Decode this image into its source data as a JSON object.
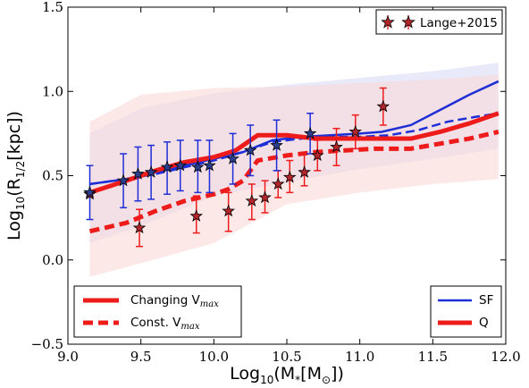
{
  "chart_data": {
    "type": "line",
    "xlabel": "Log10(M*[M⊙])",
    "ylabel": "Log10(R1/2[kpc])",
    "xlabel_parts": {
      "pre": "Log",
      "sub1": "10",
      "mid": "(M",
      "sub2": "*",
      "mid2": "[M",
      "sub3": "⊙",
      "post": "])"
    },
    "ylabel_parts": {
      "pre": "Log",
      "sub1": "10",
      "mid": "(R",
      "sub2": "1/2",
      "post": "[kpc])"
    },
    "xlim": [
      9.0,
      12.0
    ],
    "ylim": [
      -0.5,
      1.5
    ],
    "xticks": [
      9.0,
      9.5,
      10.0,
      10.5,
      11.0,
      11.5,
      12.0
    ],
    "yticks": [
      -0.5,
      0.0,
      0.5,
      1.0,
      1.5
    ],
    "xtick_labels": [
      "9.0",
      "9.5",
      "10.0",
      "10.5",
      "11.0",
      "11.5",
      "12.0"
    ],
    "ytick_labels": [
      "−0.5",
      "0.0",
      "0.5",
      "1.0",
      "1.5"
    ],
    "grid": false,
    "colors": {
      "sf": "#1f2fd6",
      "q": "#ee1b1b",
      "star_q_fill": "#b3262b",
      "star_sf_fill": "#2c3f8f",
      "band_sf": "#d5d8f6",
      "band_q": "#fbd6d6"
    },
    "bands": [
      {
        "name": "SF",
        "x": [
          9.15,
          9.5,
          10.0,
          10.5,
          11.0,
          11.5,
          11.95
        ],
        "upper": [
          0.75,
          0.9,
          0.99,
          1.04,
          1.08,
          1.12,
          1.17
        ],
        "lower": [
          0.1,
          0.2,
          0.38,
          0.46,
          0.54,
          0.6,
          0.66
        ]
      },
      {
        "name": "Q",
        "x": [
          9.15,
          9.5,
          10.0,
          10.5,
          11.0,
          11.5,
          11.95
        ],
        "upper": [
          0.82,
          0.98,
          1.02,
          1.03,
          1.05,
          1.07,
          1.1
        ],
        "lower": [
          -0.1,
          -0.02,
          0.1,
          0.33,
          0.4,
          0.45,
          0.48
        ]
      }
    ],
    "series": [
      {
        "name": "SF",
        "group": "SF",
        "style": "solid",
        "x": [
          9.15,
          9.4,
          9.6,
          9.8,
          10.0,
          10.2,
          10.4,
          10.6,
          10.8,
          11.0,
          11.15,
          11.35,
          11.55,
          11.75,
          11.95
        ],
        "values": [
          0.45,
          0.48,
          0.52,
          0.56,
          0.6,
          0.64,
          0.71,
          0.73,
          0.74,
          0.75,
          0.76,
          0.8,
          0.89,
          0.98,
          1.06
        ]
      },
      {
        "name": "SF",
        "group": "SF",
        "style": "dashed",
        "x": [
          9.15,
          9.4,
          9.6,
          9.8,
          10.0,
          10.2,
          10.4,
          10.6,
          10.8,
          11.0,
          11.2,
          11.4,
          11.6,
          11.8,
          11.95
        ],
        "values": [
          0.45,
          0.48,
          0.51,
          0.55,
          0.59,
          0.64,
          0.7,
          0.72,
          0.73,
          0.73,
          0.74,
          0.77,
          0.82,
          0.85,
          0.87
        ]
      },
      {
        "name": "Q",
        "group": "Q",
        "style": "solid",
        "x": [
          9.15,
          9.4,
          9.6,
          9.8,
          10.0,
          10.15,
          10.3,
          10.5,
          10.7,
          10.9,
          11.1,
          11.35,
          11.55,
          11.75,
          11.95
        ],
        "values": [
          0.4,
          0.47,
          0.53,
          0.58,
          0.61,
          0.65,
          0.74,
          0.74,
          0.72,
          0.72,
          0.72,
          0.72,
          0.76,
          0.81,
          0.87
        ]
      },
      {
        "name": "Q",
        "group": "Q",
        "style": "dashed",
        "x": [
          9.15,
          9.4,
          9.6,
          9.8,
          10.0,
          10.1,
          10.2,
          10.3,
          10.5,
          10.7,
          10.9,
          11.1,
          11.35,
          11.55,
          11.75,
          11.95
        ],
        "values": [
          0.17,
          0.22,
          0.29,
          0.35,
          0.39,
          0.42,
          0.47,
          0.59,
          0.62,
          0.64,
          0.65,
          0.66,
          0.66,
          0.69,
          0.72,
          0.76
        ]
      }
    ],
    "stars_sf": [
      {
        "x": 9.15,
        "y": 0.4,
        "lo": 0.24,
        "hi": 0.56
      },
      {
        "x": 9.38,
        "y": 0.47,
        "lo": 0.31,
        "hi": 0.63
      },
      {
        "x": 9.48,
        "y": 0.51,
        "lo": 0.35,
        "hi": 0.67
      },
      {
        "x": 9.57,
        "y": 0.52,
        "lo": 0.36,
        "hi": 0.68
      },
      {
        "x": 9.68,
        "y": 0.55,
        "lo": 0.39,
        "hi": 0.7
      },
      {
        "x": 9.77,
        "y": 0.56,
        "lo": 0.41,
        "hi": 0.71
      },
      {
        "x": 9.89,
        "y": 0.55,
        "lo": 0.4,
        "hi": 0.71
      },
      {
        "x": 9.97,
        "y": 0.56,
        "lo": 0.4,
        "hi": 0.71
      },
      {
        "x": 10.13,
        "y": 0.6,
        "lo": 0.45,
        "hi": 0.75
      },
      {
        "x": 10.25,
        "y": 0.65,
        "lo": 0.5,
        "hi": 0.8
      },
      {
        "x": 10.43,
        "y": 0.68,
        "lo": 0.53,
        "hi": 0.83
      },
      {
        "x": 10.66,
        "y": 0.75,
        "lo": 0.63,
        "hi": 0.87
      }
    ],
    "stars_q": [
      {
        "x": 9.15,
        "y": 0.39,
        "lo": 0.39,
        "hi": 0.39
      },
      {
        "x": 9.49,
        "y": 0.19,
        "lo": 0.08,
        "hi": 0.3
      },
      {
        "x": 9.88,
        "y": 0.26,
        "lo": 0.16,
        "hi": 0.38
      },
      {
        "x": 10.1,
        "y": 0.29,
        "lo": 0.17,
        "hi": 0.4
      },
      {
        "x": 10.26,
        "y": 0.35,
        "lo": 0.24,
        "hi": 0.45
      },
      {
        "x": 10.35,
        "y": 0.37,
        "lo": 0.28,
        "hi": 0.47
      },
      {
        "x": 10.44,
        "y": 0.45,
        "lo": 0.37,
        "hi": 0.53
      },
      {
        "x": 10.52,
        "y": 0.49,
        "lo": 0.4,
        "hi": 0.59
      },
      {
        "x": 10.62,
        "y": 0.52,
        "lo": 0.44,
        "hi": 0.63
      },
      {
        "x": 10.71,
        "y": 0.62,
        "lo": 0.53,
        "hi": 0.71
      },
      {
        "x": 10.84,
        "y": 0.67,
        "lo": 0.56,
        "hi": 0.78
      },
      {
        "x": 10.97,
        "y": 0.76,
        "lo": 0.66,
        "hi": 0.86
      },
      {
        "x": 11.16,
        "y": 0.91,
        "lo": 0.8,
        "hi": 1.02
      }
    ],
    "legend_markers": {
      "label": "Lange+2015",
      "placement": "top-right"
    },
    "legend_style": {
      "placement": "lower-left",
      "items": [
        {
          "label": "Changing V",
          "sub": "max",
          "style": "solid"
        },
        {
          "label": "Const. V",
          "sub": "max",
          "style": "dashed"
        }
      ]
    },
    "legend_pop": {
      "placement": "lower-right",
      "items": [
        {
          "label": "SF",
          "group": "SF"
        },
        {
          "label": "Q",
          "group": "Q"
        }
      ]
    }
  }
}
